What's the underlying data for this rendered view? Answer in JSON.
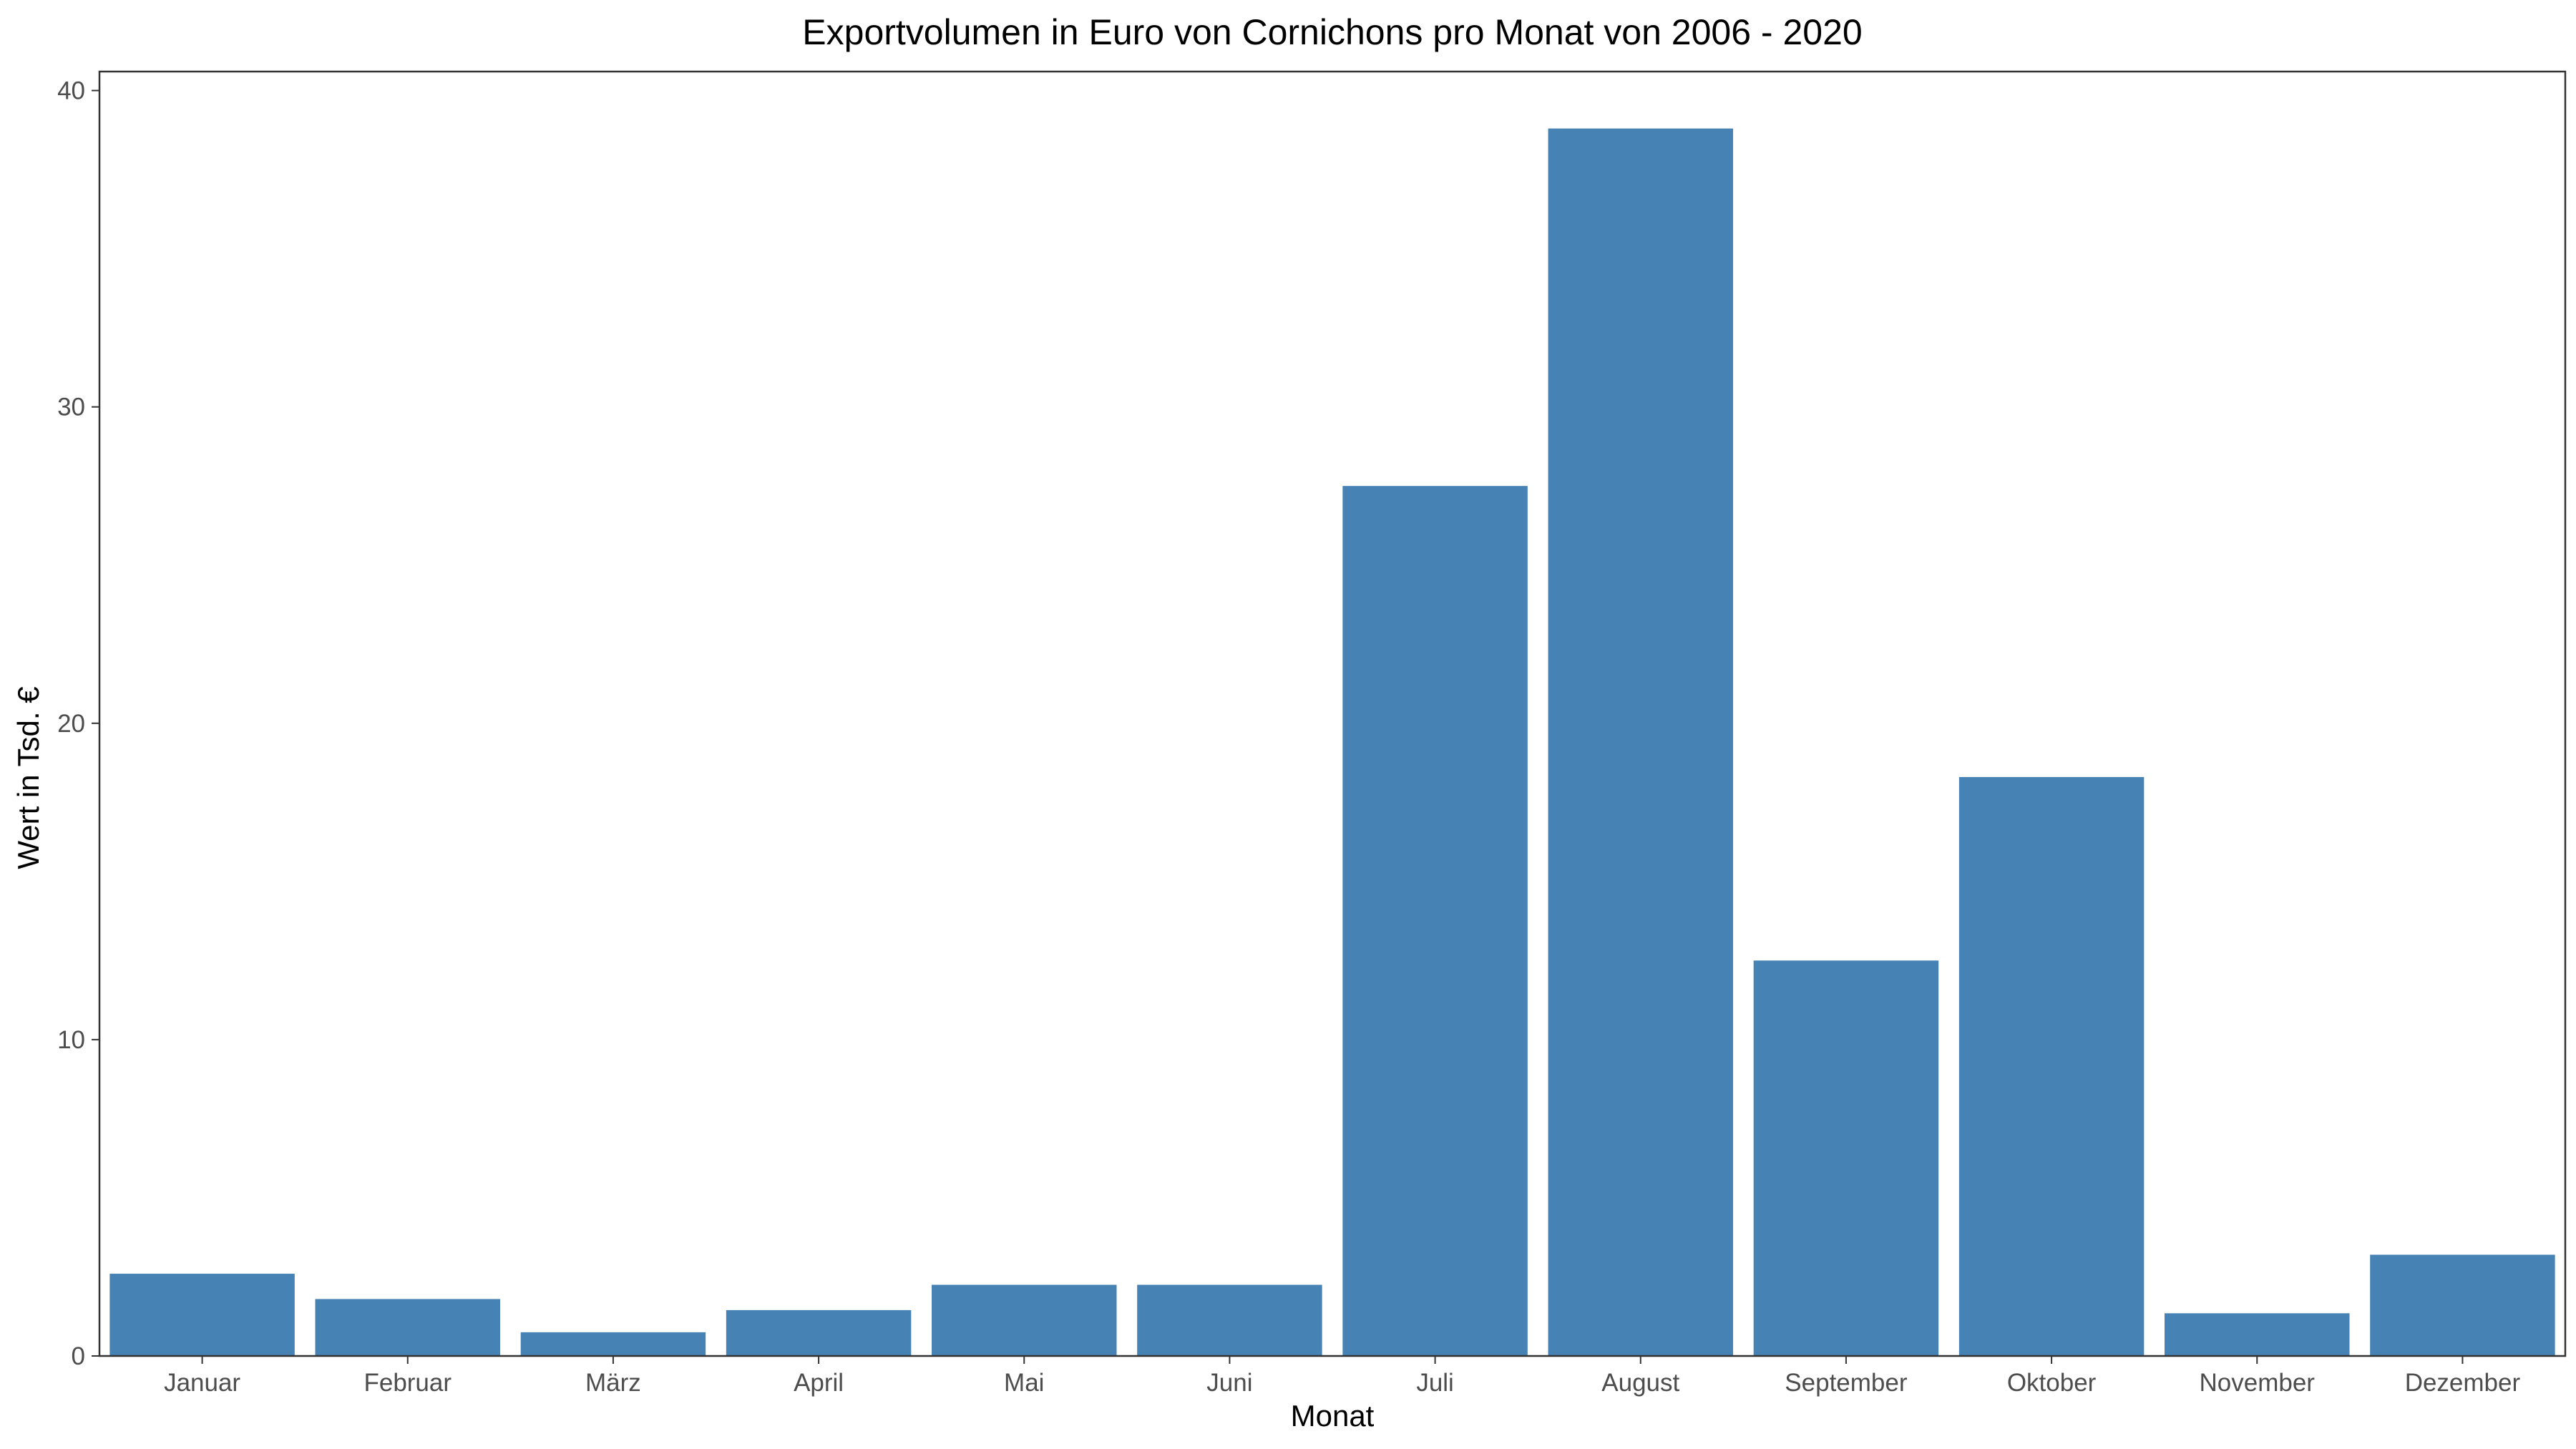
{
  "chart_data": {
    "type": "bar",
    "title": "Exportvolumen in Euro von Cornichons pro Monat von 2006 - 2020",
    "xlabel": "Monat",
    "ylabel": "Wert in Tsd. €",
    "categories": [
      "Januar",
      "Februar",
      "März",
      "April",
      "Mai",
      "Juni",
      "Juli",
      "August",
      "September",
      "Oktober",
      "November",
      "Dezember"
    ],
    "values": [
      2.6,
      1.8,
      0.75,
      1.45,
      2.25,
      2.25,
      27.5,
      38.8,
      12.5,
      18.3,
      1.35,
      3.2
    ],
    "ylim": [
      0,
      40.6
    ],
    "yticks": [
      0,
      10,
      20,
      30,
      40
    ],
    "grid": false,
    "legend": "none",
    "bar_color": "#4682B4"
  }
}
